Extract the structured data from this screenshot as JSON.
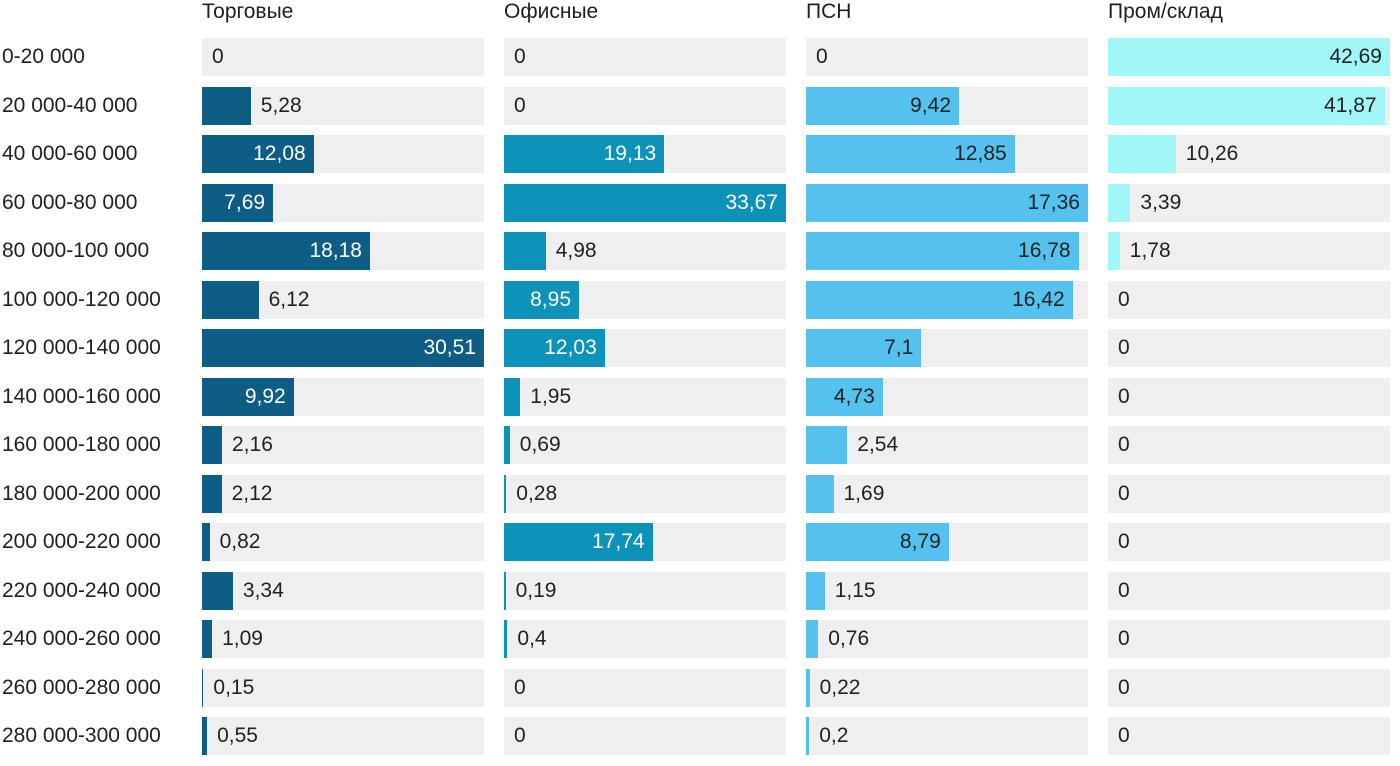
{
  "chart_data": {
    "type": "bar",
    "orientation": "horizontal",
    "title": "",
    "xlabel": "",
    "ylabel": "",
    "grid": false,
    "legend_position": "column-headers-top",
    "track_color": "#efefef",
    "text_color": "#1f1f1f",
    "categories": [
      "0-20 000",
      "20 000-40 000",
      "40 000-60 000",
      "60 000-80 000",
      "80 000-100 000",
      "100 000-120 000",
      "120 000-140 000",
      "140 000-160 000",
      "160 000-180 000",
      "180 000-200 000",
      "200 000-220 000",
      "220 000-240 000",
      "240 000-260 000",
      "260 000-280 000",
      "280 000-300 000"
    ],
    "series": [
      {
        "name": "Торговые",
        "color": "#0d5d84",
        "label_color_inside": "#ffffff",
        "values": [
          0,
          5.28,
          12.08,
          7.69,
          18.18,
          6.12,
          30.51,
          9.92,
          2.16,
          2.12,
          0.82,
          3.34,
          1.09,
          0.15,
          0.55
        ]
      },
      {
        "name": "Офисные",
        "color": "#0d93ba",
        "label_color_inside": "#ffffff",
        "values": [
          0,
          0,
          19.13,
          33.67,
          4.98,
          8.95,
          12.03,
          1.95,
          0.69,
          0.28,
          17.74,
          0.19,
          0.4,
          0,
          0
        ]
      },
      {
        "name": "ПСН",
        "color": "#55c1ef",
        "label_color_inside": "#222222",
        "values": [
          0,
          9.42,
          12.85,
          17.36,
          16.78,
          16.42,
          7.1,
          4.73,
          2.54,
          1.69,
          8.79,
          1.15,
          0.76,
          0.22,
          0.2
        ]
      },
      {
        "name": "Пром/склад",
        "color": "#a1f7f7",
        "label_color_inside": "#222222",
        "values": [
          42.69,
          41.87,
          10.26,
          3.39,
          1.78,
          0,
          0,
          0,
          0,
          0,
          0,
          0,
          0,
          0,
          0
        ]
      }
    ]
  }
}
